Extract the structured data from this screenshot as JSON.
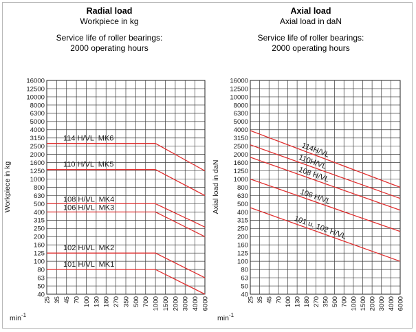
{
  "chart_data": [
    {
      "type": "line",
      "title": "Radial load",
      "subtitle": "Workpiece in kg",
      "subtitle2_line1": "Service life of roller bearings:",
      "subtitle2_line2": "2000 operating hours",
      "ylabel": "Workpiece in kg",
      "xlabel": "min-1",
      "x_scale": "log",
      "y_scale": "log",
      "xlim": [
        25,
        6000
      ],
      "ylim": [
        40,
        16000
      ],
      "grid": true,
      "x_ticks": [
        "25",
        "35",
        "45",
        "70",
        "100",
        "130",
        "180",
        "270",
        "350",
        "500",
        "700",
        "1000",
        "1500",
        "2000",
        "3000",
        "4000",
        "6000"
      ],
      "y_ticks": [
        "16000",
        "12500",
        "10000",
        "8000",
        "6300",
        "5000",
        "4000",
        "3150",
        "2500",
        "2000",
        "1600",
        "1250",
        "1000",
        "800",
        "630",
        "500",
        "400",
        "315",
        "250",
        "200",
        "160",
        "125",
        "100",
        "80",
        "63",
        "50",
        "40"
      ],
      "line_color": "#e03030",
      "series": [
        {
          "name": "114 H/VL  MK6",
          "x": [
            25,
            1000,
            6000
          ],
          "y": [
            2700,
            2700,
            1250
          ]
        },
        {
          "name": "110 H/VL  MK5",
          "x": [
            25,
            1000,
            6000
          ],
          "y": [
            1300,
            1300,
            630
          ]
        },
        {
          "name": "108 H/VL  MK4",
          "x": [
            25,
            1000,
            6000
          ],
          "y": [
            500,
            500,
            260
          ]
        },
        {
          "name": "106 H/VL  MK3",
          "x": [
            25,
            1000,
            6000
          ],
          "y": [
            400,
            400,
            200
          ]
        },
        {
          "name": "102 H/VL  MK2",
          "x": [
            25,
            1000,
            6000
          ],
          "y": [
            125,
            125,
            63
          ]
        },
        {
          "name": "101 H/VL  MK1",
          "x": [
            25,
            1000,
            6000
          ],
          "y": [
            80,
            80,
            40
          ]
        }
      ]
    },
    {
      "type": "line",
      "title": "Axial load",
      "subtitle": "Axial load in daN",
      "subtitle2_line1": "Service life of roller bearings:",
      "subtitle2_line2": "2000 operating hours",
      "ylabel": "Axial load in daN",
      "xlabel": "min-1",
      "x_scale": "log",
      "y_scale": "log",
      "xlim": [
        25,
        6000
      ],
      "ylim": [
        40,
        16000
      ],
      "grid": true,
      "x_ticks": [
        "25",
        "35",
        "45",
        "70",
        "100",
        "130",
        "180",
        "270",
        "350",
        "500",
        "700",
        "1000",
        "1500",
        "2000",
        "3000",
        "4000",
        "6000"
      ],
      "y_ticks": [
        "16000",
        "12500",
        "10000",
        "8000",
        "6300",
        "5000",
        "4000",
        "3150",
        "2500",
        "2000",
        "1600",
        "1250",
        "1000",
        "800",
        "630",
        "500",
        "400",
        "315",
        "250",
        "200",
        "160",
        "125",
        "100",
        "80",
        "63",
        "50",
        "40"
      ],
      "line_color": "#e03030",
      "series": [
        {
          "name": "114H/VL",
          "x": [
            25,
            6000
          ],
          "y": [
            3900,
            800
          ]
        },
        {
          "name": "110H/VL",
          "x": [
            25,
            6000
          ],
          "y": [
            2600,
            580
          ]
        },
        {
          "name": "108 H/VL",
          "x": [
            25,
            6000
          ],
          "y": [
            1850,
            420
          ]
        },
        {
          "name": "106 H/VL",
          "x": [
            25,
            6000
          ],
          "y": [
            1000,
            230
          ]
        },
        {
          "name": "101 u. 102 H/VL",
          "x": [
            25,
            6000
          ],
          "y": [
            450,
            100
          ]
        }
      ]
    }
  ]
}
